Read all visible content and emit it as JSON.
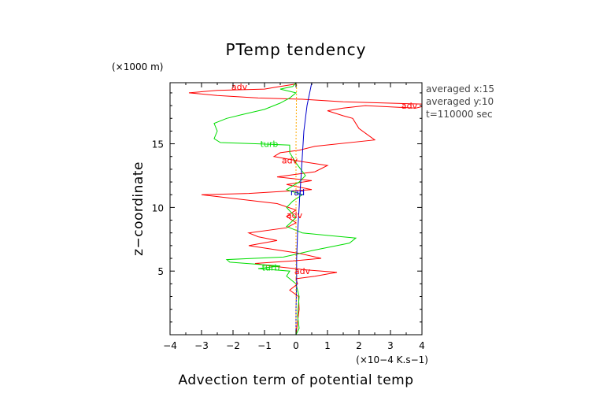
{
  "chart_data": {
    "type": "line",
    "title": "PTemp tendency",
    "xlabel": "Advection term of potential temp",
    "x_unit": "(×10−4 K.s−1)",
    "ylabel": "z−coordinate",
    "y_unit": "(×1000 m)",
    "xlim": [
      -4,
      4
    ],
    "ylim": [
      0,
      19.8
    ],
    "xticks": [
      "−4",
      "−3",
      "−2",
      "−1",
      "0",
      "1",
      "2",
      "3",
      "4"
    ],
    "yticks": [
      "5",
      "10",
      "15"
    ],
    "grid": false,
    "annotations": [
      "averaged  x:15",
      "averaged  y:10",
      "t=110000 sec"
    ],
    "series": [
      {
        "name": "adv",
        "color": "#ff0000",
        "label_points": [
          [
            -1.8,
            19.5
          ],
          [
            3.6,
            18.0
          ],
          [
            -0.2,
            13.7
          ],
          [
            -0.05,
            9.4
          ],
          [
            0.2,
            5.0
          ]
        ],
        "points": [
          [
            0,
            0
          ],
          [
            0.05,
            1
          ],
          [
            0.1,
            2
          ],
          [
            0.08,
            3
          ],
          [
            -0.2,
            3.5
          ],
          [
            0.05,
            4
          ],
          [
            0,
            4.4
          ],
          [
            0.6,
            4.6
          ],
          [
            1.3,
            4.9
          ],
          [
            0.3,
            5.1
          ],
          [
            -0.8,
            5.4
          ],
          [
            -1.3,
            5.6
          ],
          [
            -0.1,
            5.8
          ],
          [
            0.8,
            6.0
          ],
          [
            0.1,
            6.4
          ],
          [
            -1.5,
            7.0
          ],
          [
            -0.6,
            7.4
          ],
          [
            -1.2,
            7.7
          ],
          [
            -1.5,
            8.0
          ],
          [
            -0.3,
            8.4
          ],
          [
            0,
            8.8
          ],
          [
            -0.3,
            9.3
          ],
          [
            0,
            9.8
          ],
          [
            -0.6,
            10.3
          ],
          [
            -3.0,
            11.0
          ],
          [
            -1.5,
            11.1
          ],
          [
            0.5,
            11.4
          ],
          [
            -0.3,
            11.8
          ],
          [
            0.5,
            12.1
          ],
          [
            -0.6,
            12.4
          ],
          [
            0.6,
            12.8
          ],
          [
            1.0,
            13.3
          ],
          [
            0.2,
            13.6
          ],
          [
            -0.7,
            14.0
          ],
          [
            -0.5,
            14.3
          ],
          [
            0.1,
            14.5
          ],
          [
            0.6,
            14.8
          ],
          [
            2.5,
            15.3
          ],
          [
            2.0,
            16.2
          ],
          [
            1.8,
            17.0
          ],
          [
            1.5,
            17.2
          ],
          [
            1.0,
            17.6
          ],
          [
            1.5,
            17.8
          ],
          [
            2.2,
            18.0
          ],
          [
            3.8,
            17.8
          ],
          [
            4.3,
            18.1
          ],
          [
            1.5,
            18.3
          ],
          [
            0.2,
            18.5
          ],
          [
            -1.2,
            18.6
          ],
          [
            -2.5,
            18.8
          ],
          [
            -3.4,
            19.0
          ],
          [
            -2.5,
            19.2
          ],
          [
            -1.0,
            19.3
          ],
          [
            -0.5,
            19.5
          ],
          [
            0,
            19.7
          ]
        ]
      },
      {
        "name": "turb",
        "color": "#00dd00",
        "label_points": [
          [
            -0.85,
            15.0
          ],
          [
            -0.8,
            5.3
          ]
        ],
        "points": [
          [
            0,
            0
          ],
          [
            0.1,
            0.5
          ],
          [
            0.05,
            1.5
          ],
          [
            0.1,
            3
          ],
          [
            0,
            4
          ],
          [
            -0.3,
            4.6
          ],
          [
            -0.2,
            5.0
          ],
          [
            -1.2,
            5.2
          ],
          [
            -0.5,
            5.4
          ],
          [
            -2.1,
            5.7
          ],
          [
            -2.2,
            5.9
          ],
          [
            -0.4,
            6.1
          ],
          [
            0.5,
            6.6
          ],
          [
            1.7,
            7.2
          ],
          [
            1.9,
            7.6
          ],
          [
            1.0,
            7.8
          ],
          [
            0.2,
            8.0
          ],
          [
            -0.3,
            8.5
          ],
          [
            0,
            9.2
          ],
          [
            -0.3,
            10.0
          ],
          [
            -0.1,
            10.5
          ],
          [
            0.2,
            11.0
          ],
          [
            -0.3,
            11.4
          ],
          [
            0.1,
            12.0
          ],
          [
            0.3,
            12.5
          ],
          [
            0,
            13.5
          ],
          [
            -0.2,
            14.3
          ],
          [
            -0.2,
            14.9
          ],
          [
            -1.2,
            15.0
          ],
          [
            -2.4,
            15.1
          ],
          [
            -2.6,
            15.4
          ],
          [
            -2.5,
            16.0
          ],
          [
            -2.6,
            16.6
          ],
          [
            -2.2,
            17.0
          ],
          [
            -1.7,
            17.3
          ],
          [
            -1.0,
            17.7
          ],
          [
            -0.5,
            18.2
          ],
          [
            -0.2,
            18.6
          ],
          [
            0,
            19.0
          ],
          [
            -0.5,
            19.3
          ],
          [
            -0.1,
            19.5
          ],
          [
            0,
            19.8
          ]
        ]
      },
      {
        "name": "rad",
        "color": "#0000cc",
        "label_points": [
          [
            0.05,
            11.2
          ]
        ],
        "points": [
          [
            0,
            0
          ],
          [
            0,
            2
          ],
          [
            0.02,
            4
          ],
          [
            0.02,
            6
          ],
          [
            0.05,
            8
          ],
          [
            0.1,
            10
          ],
          [
            0.12,
            11
          ],
          [
            0.15,
            12
          ],
          [
            0.2,
            14
          ],
          [
            0.25,
            16
          ],
          [
            0.35,
            18
          ],
          [
            0.5,
            19.8
          ]
        ]
      },
      {
        "name": "",
        "color": "#ffaa00",
        "dashed": true,
        "points": [
          [
            0,
            0
          ],
          [
            0,
            5
          ],
          [
            0,
            10
          ],
          [
            0,
            15
          ],
          [
            0.02,
            19.8
          ]
        ]
      }
    ]
  }
}
